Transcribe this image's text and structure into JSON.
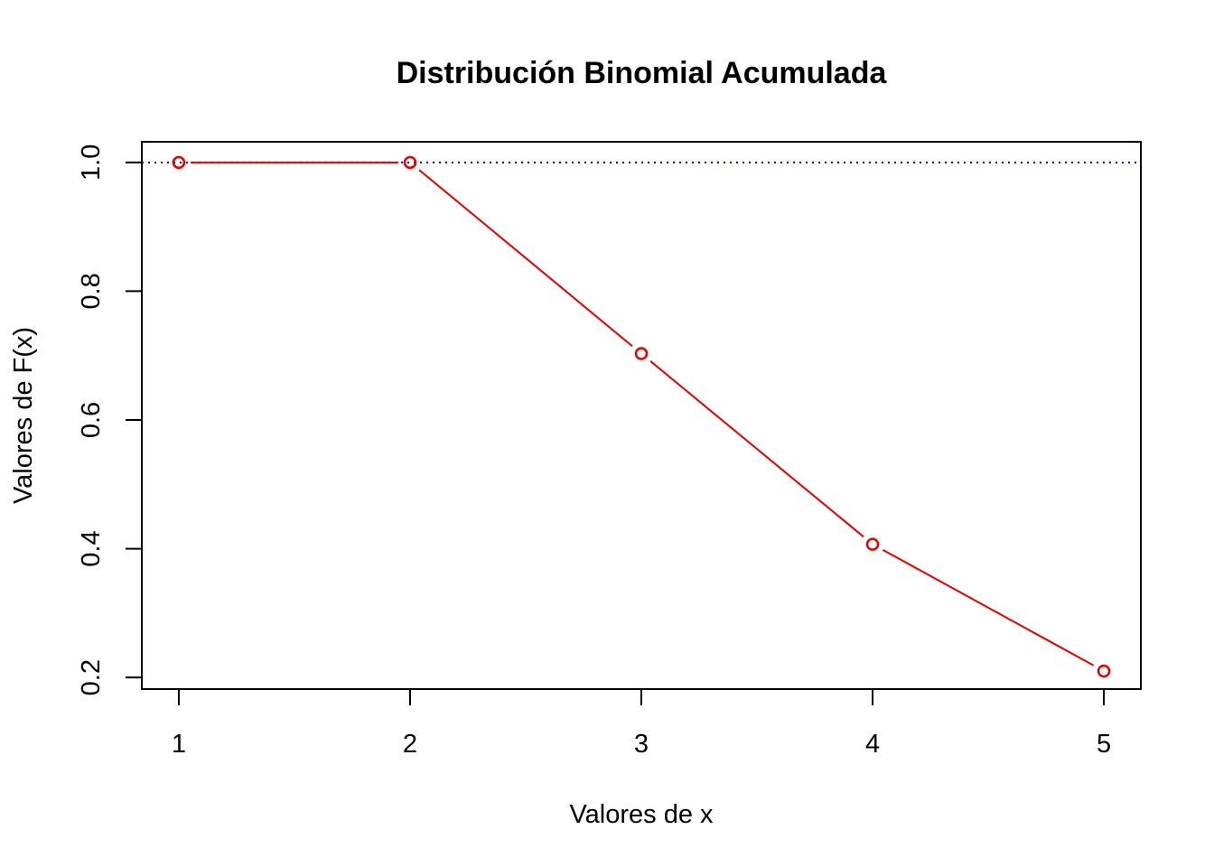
{
  "chart_data": {
    "type": "line",
    "title": "Distribución Binomial Acumulada",
    "xlabel": "Valores de x",
    "ylabel": "Valores de F(x)",
    "x": [
      1,
      2,
      3,
      4,
      5
    ],
    "series": [
      {
        "values": [
          1.0,
          1.0,
          0.703,
          0.407,
          0.21
        ],
        "color": "#e00000",
        "marker": "open-circle"
      }
    ],
    "reference_line": {
      "y": 1.0,
      "color": "#0000cc",
      "style": "dotted"
    },
    "xticks": [
      "1",
      "2",
      "3",
      "4",
      "5"
    ],
    "yticks": [
      "0.2",
      "0.4",
      "0.6",
      "0.8",
      "1.0"
    ],
    "xlim": [
      0.84,
      5.16
    ],
    "ylim": [
      0.182,
      1.032
    ],
    "grid": false,
    "legend": "none"
  }
}
